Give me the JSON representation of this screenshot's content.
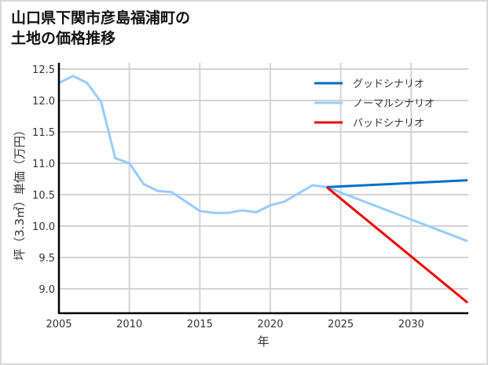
{
  "title": {
    "line1": "山口県下関市彦島福浦町の",
    "line2": "土地の価格推移"
  },
  "chart_data": {
    "type": "line",
    "title": "山口県下関市彦島福浦町の土地の価格推移",
    "xlabel": "年",
    "ylabel": "坪（3.3㎡）単価（万円）",
    "xlim": [
      2005,
      2034
    ],
    "ylim": [
      8.6,
      12.55
    ],
    "x_ticks": [
      2005,
      2010,
      2015,
      2020,
      2025,
      2030
    ],
    "y_ticks": [
      9.0,
      9.5,
      10.0,
      10.5,
      11.0,
      11.5,
      12.0,
      12.5
    ],
    "grid": true,
    "legend_position": "upper right",
    "series": [
      {
        "name": "グッドシナリオ",
        "color": "#0070c8",
        "x": [
          2024,
          2034
        ],
        "values": [
          10.62,
          10.73
        ]
      },
      {
        "name": "ノーマルシナリオ",
        "color": "#99ccff",
        "x": [
          2005,
          2006,
          2007,
          2008,
          2009,
          2010,
          2011,
          2012,
          2013,
          2014,
          2015,
          2016,
          2017,
          2018,
          2019,
          2020,
          2021,
          2022,
          2023,
          2024,
          2034
        ],
        "values": [
          12.28,
          12.39,
          12.28,
          11.97,
          11.08,
          11.0,
          10.67,
          10.56,
          10.54,
          10.39,
          10.24,
          10.21,
          10.21,
          10.25,
          10.22,
          10.33,
          10.39,
          10.52,
          10.65,
          10.62,
          9.76
        ]
      },
      {
        "name": "バッドシナリオ",
        "color": "#ee0000",
        "x": [
          2024,
          2034
        ],
        "values": [
          10.62,
          8.78
        ]
      }
    ]
  },
  "axis": {
    "x_tick_labels": [
      "2005",
      "2010",
      "2015",
      "2020",
      "2025",
      "2030"
    ],
    "y_tick_labels": [
      "9.0",
      "9.5",
      "10.0",
      "10.5",
      "11.0",
      "11.5",
      "12.0",
      "12.5"
    ],
    "xlabel": "年",
    "ylabel": "坪（3.3㎡）単価（万円）"
  },
  "legend": [
    {
      "label": "グッドシナリオ",
      "color": "#0070c8"
    },
    {
      "label": "ノーマルシナリオ",
      "color": "#99ccff"
    },
    {
      "label": "バッドシナリオ",
      "color": "#ee0000"
    }
  ]
}
